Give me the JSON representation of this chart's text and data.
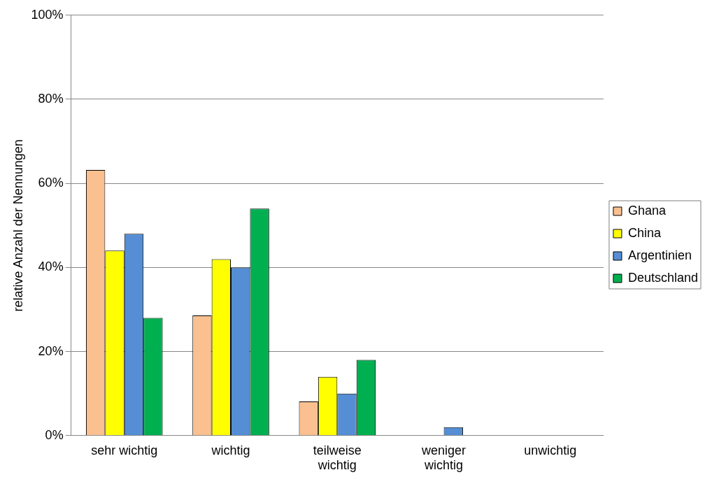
{
  "chart_data": {
    "type": "bar",
    "ylabel": "relative Anzahl der Nennungen",
    "categories": [
      "sehr wichtig",
      "wichtig",
      "teilweise wichtig",
      "weniger wichtig",
      "unwichtig"
    ],
    "series": [
      {
        "name": "Ghana",
        "color": "#fac090",
        "values": [
          63.2,
          28.6,
          8.1,
          0,
          0
        ]
      },
      {
        "name": "China",
        "color": "#ffff00",
        "values": [
          44,
          42,
          14,
          0,
          0
        ]
      },
      {
        "name": "Argentinien",
        "color": "#558ed5",
        "values": [
          48,
          40,
          10,
          2,
          0
        ]
      },
      {
        "name": "Deutschland",
        "color": "#00b050",
        "values": [
          28,
          54,
          18,
          0,
          0
        ]
      }
    ],
    "ylim": [
      0,
      100
    ],
    "yticks": [
      {
        "value": 0,
        "label": "0%"
      },
      {
        "value": 20,
        "label": "20%"
      },
      {
        "value": 40,
        "label": "40%"
      },
      {
        "value": 60,
        "label": "60%"
      },
      {
        "value": 80,
        "label": "80%"
      },
      {
        "value": 100,
        "label": "100%"
      }
    ],
    "grid": "y",
    "legend": "right"
  }
}
